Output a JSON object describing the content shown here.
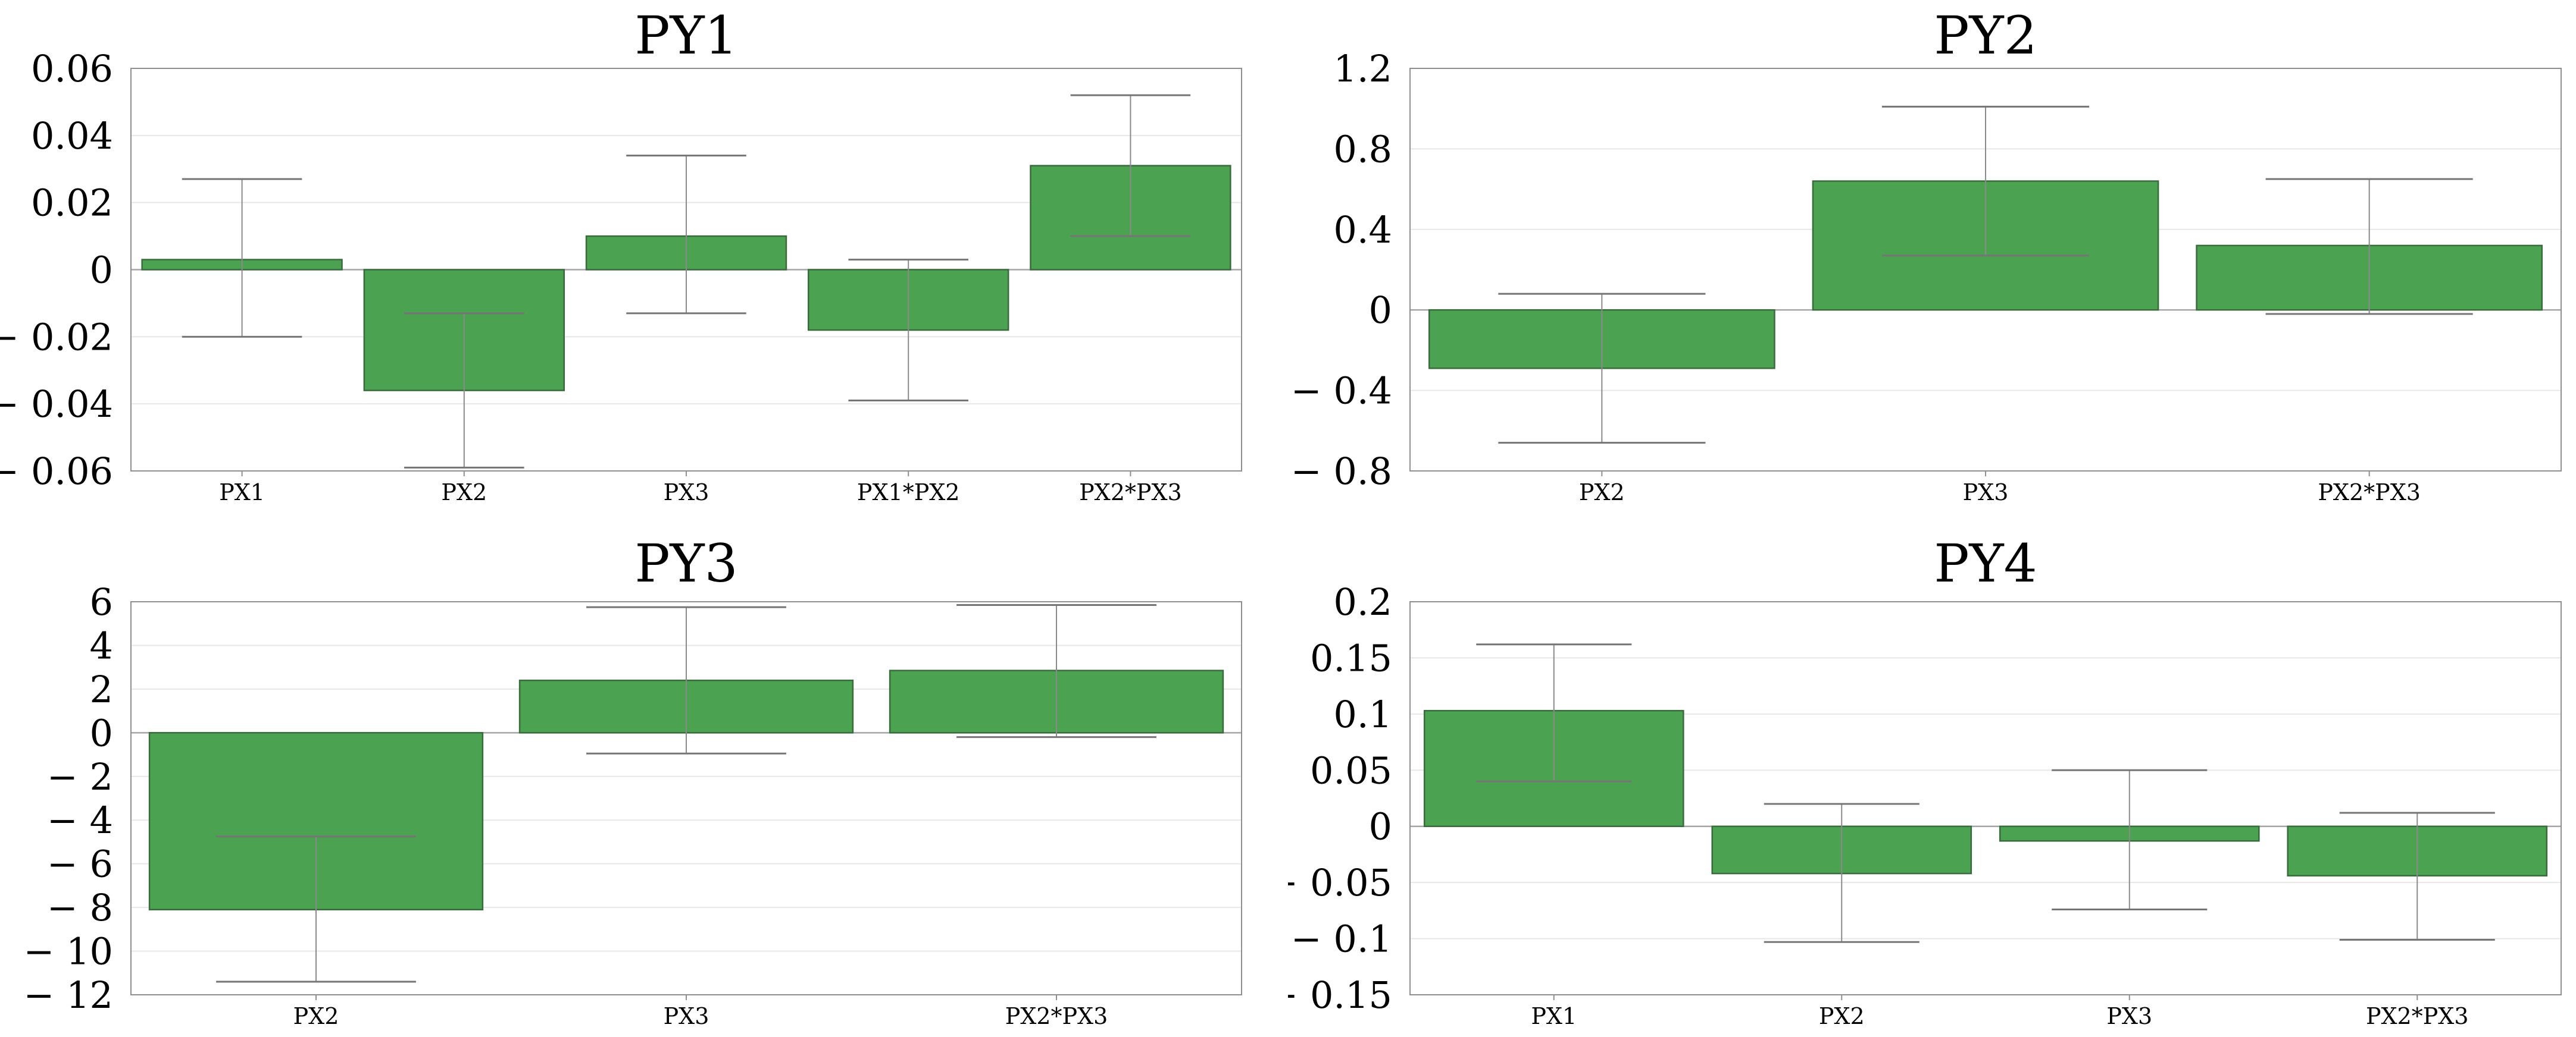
{
  "style": {
    "bar_fill": "#4BA352",
    "bar_edge": "#3A6B3D",
    "error_bar": "#8A8A8A",
    "error_cap": "#757575",
    "grid_line": "#E7E7E7",
    "zero_line": "#A6A6A6",
    "spine": "#8F8F8F",
    "background": "#FFFFFF",
    "text": "#000000"
  },
  "chart_data": [
    {
      "type": "bar",
      "title": "PY1",
      "categories": [
        "PX1",
        "PX2",
        "PX3",
        "PX1*PX2",
        "PX2*PX3"
      ],
      "values": [
        0.003,
        -0.036,
        0.01,
        -0.018,
        0.031
      ],
      "error_low": [
        -0.02,
        -0.059,
        -0.013,
        -0.039,
        0.01
      ],
      "error_high": [
        0.027,
        -0.013,
        0.034,
        0.003,
        0.052
      ],
      "ylim": [
        -0.06,
        0.06
      ],
      "yticks": [
        0.06,
        0.04,
        0.02,
        0,
        -0.02,
        -0.04,
        -0.06
      ],
      "xlabel": "",
      "ylabel": "",
      "grid": true,
      "legend": "none"
    },
    {
      "type": "bar",
      "title": "PY2",
      "categories": [
        "PX2",
        "PX3",
        "PX2*PX3"
      ],
      "values": [
        -0.29,
        0.64,
        0.32
      ],
      "error_low": [
        -0.66,
        0.27,
        -0.02
      ],
      "error_high": [
        0.08,
        1.01,
        0.65
      ],
      "ylim": [
        -0.8,
        1.2
      ],
      "yticks": [
        1.2,
        0.8,
        0.4,
        0,
        -0.4,
        -0.8
      ],
      "xlabel": "",
      "ylabel": "",
      "grid": true,
      "legend": "none"
    },
    {
      "type": "bar",
      "title": "PY3",
      "categories": [
        "PX2",
        "PX3",
        "PX2*PX3"
      ],
      "values": [
        -8.1,
        2.4,
        2.85
      ],
      "error_low": [
        -11.4,
        -0.95,
        -0.2
      ],
      "error_high": [
        -4.75,
        5.75,
        5.85
      ],
      "ylim": [
        -12,
        6
      ],
      "yticks": [
        6,
        4,
        2,
        0,
        -2,
        -4,
        -6,
        -8,
        -10,
        -12
      ],
      "xlabel": "",
      "ylabel": "",
      "grid": true,
      "legend": "none"
    },
    {
      "type": "bar",
      "title": "PY4",
      "categories": [
        "PX1",
        "PX2",
        "PX3",
        "PX2*PX3"
      ],
      "values": [
        0.103,
        -0.042,
        -0.013,
        -0.044
      ],
      "error_low": [
        0.04,
        -0.103,
        -0.074,
        -0.101
      ],
      "error_high": [
        0.162,
        0.02,
        0.05,
        0.012
      ],
      "ylim": [
        -0.15,
        0.2
      ],
      "yticks": [
        0.2,
        0.15,
        0.1,
        0.05,
        0,
        -0.05,
        -0.1,
        -0.15
      ],
      "xlabel": "",
      "ylabel": "",
      "grid": true,
      "legend": "none"
    }
  ]
}
